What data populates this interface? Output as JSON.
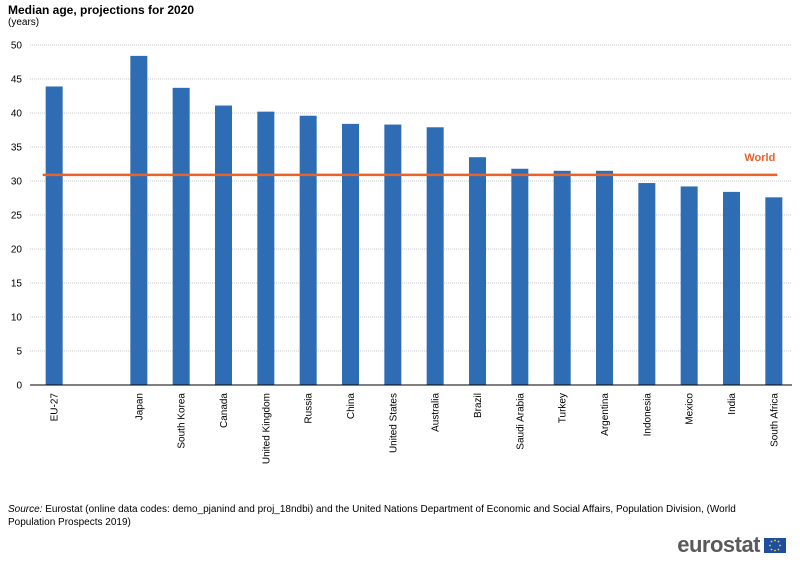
{
  "header": {
    "title": "Median age, projections for 2020",
    "subtitle": "(years)"
  },
  "chart_data": {
    "type": "bar",
    "categories": [
      "EU-27",
      "",
      "Japan",
      "South Korea",
      "Canada",
      "United Kingdom",
      "Russia",
      "China",
      "United States",
      "Australia",
      "Brazil",
      "Saudi Arabia",
      "Turkey",
      "Argentina",
      "Indonesia",
      "Mexico",
      "India",
      "South Africa"
    ],
    "values": [
      43.9,
      null,
      48.4,
      43.7,
      41.1,
      40.2,
      39.6,
      38.4,
      38.3,
      37.9,
      33.5,
      31.8,
      31.5,
      31.5,
      29.7,
      29.2,
      28.4,
      27.6
    ],
    "reference_line": {
      "label": "World",
      "value": 30.9,
      "color": "#e8632a"
    },
    "ylim": [
      0,
      50
    ],
    "yticks": [
      0,
      5,
      10,
      15,
      20,
      25,
      30,
      35,
      40,
      45,
      50
    ],
    "grid": true,
    "bar_color": "#2e6db4",
    "xlabel": "",
    "ylabel": ""
  },
  "footer": {
    "source_label": "Source:",
    "source_text": " Eurostat (online data codes: demo_pjanind and proj_18ndbi) and the United Nations Department of Economic and Social Affairs, Population Division, (World Population Prospects 2019)",
    "logo_text": "eurostat"
  }
}
